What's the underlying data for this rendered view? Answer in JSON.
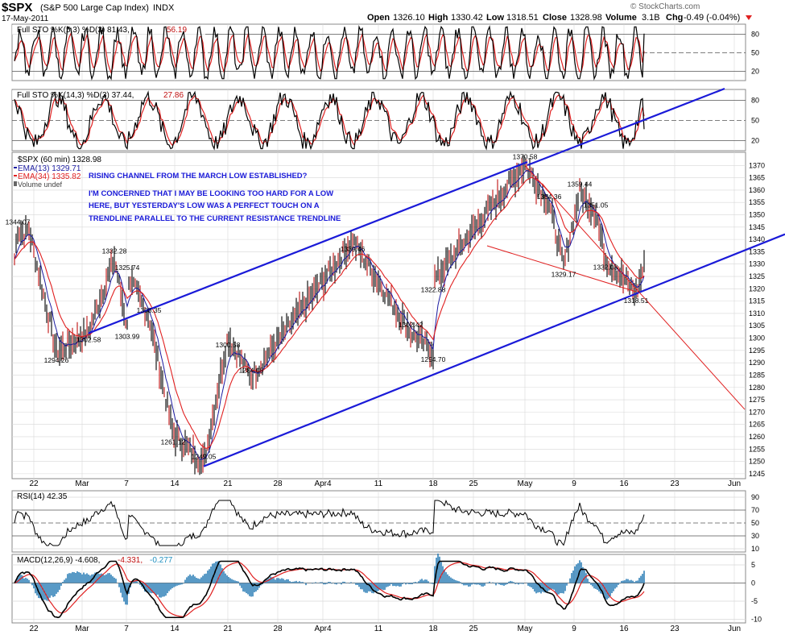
{
  "header": {
    "symbol": "$SPX",
    "name": "(S&P 500 Large Cap Index)",
    "exchange": "INDX",
    "date": "17-May-2011",
    "open_label": "Open",
    "open": "1326.10",
    "high_label": "High",
    "high": "1330.42",
    "low_label": "Low",
    "low": "1318.51",
    "close_label": "Close",
    "close": "1328.98",
    "volume_label": "Volume",
    "volume": "3.1B",
    "chg_label": "Chg",
    "chg": "-0.49 (-0.04%)",
    "watermark": "© StockCharts.com"
  },
  "panels": {
    "sto1": {
      "label": "Full STO %K(5,3) %D(3) 81.43,",
      "d_value": "56.19",
      "ticks": [
        "80",
        "50",
        "20"
      ]
    },
    "sto2": {
      "label": "Full STO %K(14,3) %D(3) 37.44,",
      "d_value": "27.86",
      "ticks": [
        "80",
        "50",
        "20"
      ]
    },
    "price": {
      "title": "$SPX (60 min) 1328.98",
      "legend": [
        {
          "text": "EMA(13) 1329.71",
          "color": "#1a1aa0"
        },
        {
          "text": "EMA(34) 1335.82",
          "color": "#e02020"
        },
        {
          "text": "Volume undef",
          "color": "#000000"
        }
      ],
      "annotations": [
        "RISING CHANNEL FROM THE MARCH LOW ESTABLISHED?",
        "I'M CONCERNED THAT I MAY BE LOOKING TOO HARD FOR A LOW",
        "HERE, BUT YESTERDAY'S LOW WAS A PERFECT TOUCH ON A",
        "TRENDLINE PARALLEL TO THE CURRENT RESISTANCE TRENDLINE"
      ]
    },
    "rsi": {
      "label": "RSI(14) 42.35",
      "ticks": [
        "90",
        "70",
        "50",
        "30",
        "10"
      ]
    },
    "macd": {
      "label": "MACD(12,26,9) -4.608,",
      "signal": "-4.331,",
      "hist": "-0.277",
      "ticks": [
        "5",
        "0",
        "-5",
        "-10"
      ]
    }
  },
  "x_axis_labels": [
    "22",
    "Mar",
    "7",
    "14",
    "21",
    "28",
    "Apr4",
    "11",
    "18",
    "25",
    "May",
    "9",
    "16",
    "23",
    "Jun"
  ],
  "colors": {
    "price": "#000000",
    "ema13": "#1a1aa0",
    "ema34": "#e02020",
    "trendline": "#1a1ad8",
    "resistance": "#e02020",
    "annotation": "#1a1ad8",
    "grid": "#d8d8d8"
  },
  "chart_data": [
    {
      "type": "line",
      "title": "$SPX (60 min) 1328.98",
      "y_axis": {
        "min": 1245,
        "max": 1370,
        "step": 5
      },
      "x_categories": [
        "22",
        "Mar",
        "7",
        "14",
        "21",
        "28",
        "Apr4",
        "11",
        "18",
        "25",
        "May",
        "9",
        "16",
        "23",
        "Jun"
      ],
      "series": [
        {
          "name": "$SPX",
          "labeled_points": [
            {
              "x": "Feb-18",
              "y": 1344.07
            },
            {
              "x": "Feb-24",
              "y": 1294.26
            },
            {
              "x": "Mar-01",
              "y": 1302.58
            },
            {
              "x": "Mar-03",
              "y": 1332.28
            },
            {
              "x": "Mar-07",
              "y": 1303.99
            },
            {
              "x": "Mar-07",
              "y": 1325.74
            },
            {
              "x": "Mar-09",
              "y": 1308.35
            },
            {
              "x": "Mar-14",
              "y": 1261.12
            },
            {
              "x": "Mar-16",
              "y": 1249.05
            },
            {
              "x": "Mar-21",
              "y": 1300.58
            },
            {
              "x": "Mar-23",
              "y": 1284.05
            },
            {
              "x": "Apr-06",
              "y": 1339.46
            },
            {
              "x": "Apr-18",
              "y": 1294.7
            },
            {
              "x": "Apr-15",
              "y": 1302.42
            },
            {
              "x": "Apr-18",
              "y": 1322.88
            },
            {
              "x": "May-02",
              "y": 1370.58
            },
            {
              "x": "May-04",
              "y": 1354.36
            },
            {
              "x": "May-06",
              "y": 1329.17
            },
            {
              "x": "May-09",
              "y": 1359.44
            },
            {
              "x": "May-11",
              "y": 1351.05
            },
            {
              "x": "May-12",
              "y": 1332.03
            },
            {
              "x": "May-16",
              "y": 1318.51
            }
          ]
        },
        {
          "name": "EMA(13) 1329.71"
        },
        {
          "name": "EMA(34) 1335.82"
        }
      ],
      "trendlines": [
        {
          "from": {
            "x": "Mar-01",
            "y": 1302
          },
          "to": {
            "x": "May-02",
            "y": 1371
          }
        },
        {
          "from": {
            "x": "Mar-16",
            "y": 1248
          },
          "to": {
            "x": "May-16",
            "y": 1318
          }
        },
        {
          "from": {
            "x": "May-02",
            "y": 1370
          },
          "to": {
            "x": "May-16",
            "y": 1320
          }
        }
      ]
    },
    {
      "type": "line",
      "title": "Full STO %K(5,3) %D(3) 81.43, 56.19",
      "y_axis": {
        "min": 0,
        "max": 100,
        "ticks": [
          20,
          50,
          80
        ]
      },
      "last": {
        "K": 81.43,
        "D": 56.19
      }
    },
    {
      "type": "line",
      "title": "Full STO %K(14,3) %D(3) 37.44, 27.86",
      "y_axis": {
        "min": 0,
        "max": 100,
        "ticks": [
          20,
          50,
          80
        ]
      },
      "last": {
        "K": 37.44,
        "D": 27.86
      }
    },
    {
      "type": "line",
      "title": "RSI(14) 42.35",
      "y_axis": {
        "min": 0,
        "max": 100,
        "ticks": [
          10,
          30,
          50,
          70,
          90
        ]
      },
      "last": 42.35
    },
    {
      "type": "line",
      "title": "MACD(12,26,9) -4.608, -4.331, -0.277",
      "y_axis": {
        "min": -10,
        "max": 5,
        "ticks": [
          -10,
          -5,
          0,
          5
        ]
      },
      "last": {
        "macd": -4.608,
        "signal": -4.331,
        "histogram": -0.277
      }
    }
  ]
}
